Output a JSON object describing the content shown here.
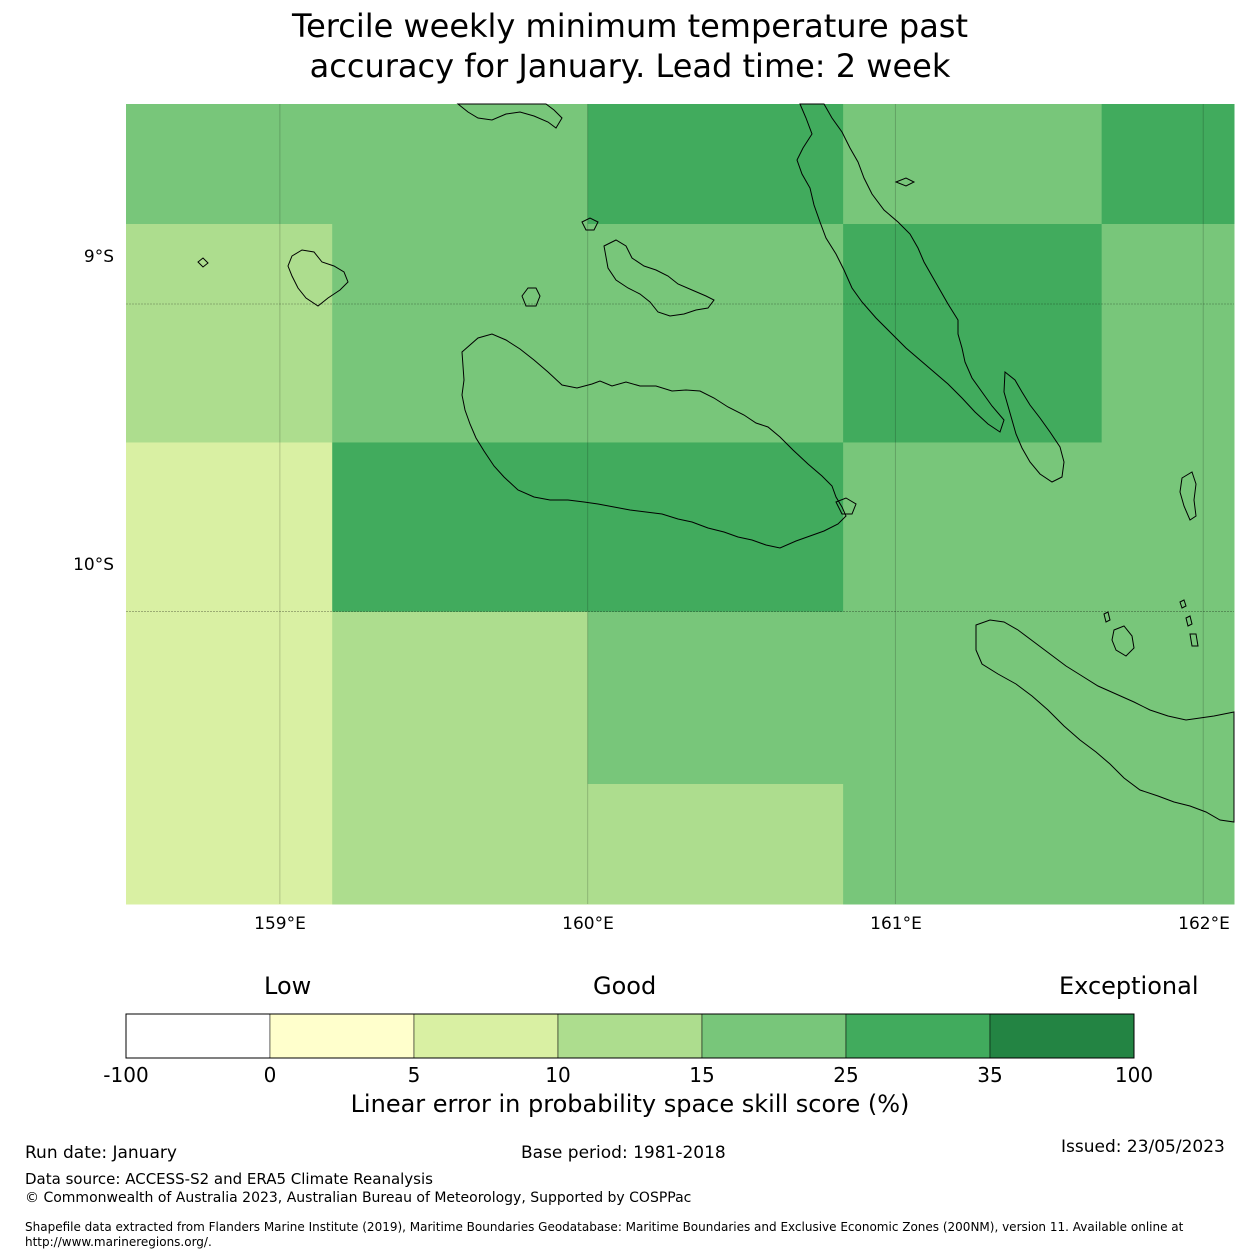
{
  "title_line1": "Tercile weekly minimum temperature past",
  "title_line2": "accuracy for January. Lead time: 2 week",
  "map": {
    "lon_range": [
      158.5,
      162.1
    ],
    "lat_range": [
      -8.35,
      -10.95
    ],
    "lat_labels": [
      "9°S",
      "10°S"
    ],
    "lon_labels": [
      "159°E",
      "160°E",
      "161°E",
      "162°E"
    ],
    "rows": [
      {
        "lat_top": -8.35,
        "lat_bottom": -8.74,
        "cells": [
          {
            "lon_w": 158.5,
            "lon_e": 160.0,
            "color": "#78c67a"
          },
          {
            "lon_w": 160.0,
            "lon_e": 160.83,
            "color": "#41ab5d"
          },
          {
            "lon_w": 160.83,
            "lon_e": 161.67,
            "color": "#78c67a"
          },
          {
            "lon_w": 161.67,
            "lon_e": 162.1,
            "color": "#41ab5d"
          }
        ]
      },
      {
        "lat_top": -8.74,
        "lat_bottom": -9.45,
        "cells": [
          {
            "lon_w": 158.5,
            "lon_e": 159.17,
            "color": "#addd8e"
          },
          {
            "lon_w": 159.17,
            "lon_e": 160.83,
            "color": "#78c67a"
          },
          {
            "lon_w": 160.83,
            "lon_e": 161.67,
            "color": "#41ab5d"
          },
          {
            "lon_w": 161.67,
            "lon_e": 162.1,
            "color": "#78c67a"
          }
        ]
      },
      {
        "lat_top": -9.45,
        "lat_bottom": -10.0,
        "cells": [
          {
            "lon_w": 158.5,
            "lon_e": 159.17,
            "color": "#d9f0a3"
          },
          {
            "lon_w": 159.17,
            "lon_e": 160.83,
            "color": "#41ab5d"
          },
          {
            "lon_w": 160.83,
            "lon_e": 162.1,
            "color": "#78c67a"
          }
        ]
      },
      {
        "lat_top": -10.0,
        "lat_bottom": -10.56,
        "cells": [
          {
            "lon_w": 158.5,
            "lon_e": 159.17,
            "color": "#d9f0a3"
          },
          {
            "lon_w": 159.17,
            "lon_e": 160.0,
            "color": "#addd8e"
          },
          {
            "lon_w": 160.0,
            "lon_e": 162.1,
            "color": "#78c67a"
          }
        ]
      },
      {
        "lat_top": -10.56,
        "lat_bottom": -10.95,
        "cells": [
          {
            "lon_w": 158.5,
            "lon_e": 159.17,
            "color": "#d9f0a3"
          },
          {
            "lon_w": 159.17,
            "lon_e": 160.83,
            "color": "#addd8e"
          },
          {
            "lon_w": 160.83,
            "lon_e": 162.1,
            "color": "#78c67a"
          }
        ]
      }
    ]
  },
  "colorbar": {
    "categories": [
      "Low",
      "Good",
      "Exceptional"
    ],
    "ticks": [
      "-100",
      "0",
      "5",
      "10",
      "15",
      "25",
      "35",
      "100"
    ],
    "colors": [
      "#ffffff",
      "#ffffcc",
      "#d9f0a3",
      "#addd8e",
      "#78c67a",
      "#41ab5d",
      "#238443"
    ],
    "label": "Linear error in probability space skill score (%)"
  },
  "footer": {
    "run_date": "Run date: January",
    "base_period": "Base period: 1981-2018",
    "issued": "Issued: 23/05/2023",
    "data_source": "Data source: ACCESS-S2 and ERA5 Climate Reanalysis",
    "copyright": "© Commonwealth of Australia 2023, Australian Bureau of Meteorology, Supported by COSPPac",
    "shapefile": "Shapefile data extracted from Flanders Marine Institute (2019), Maritime Boundaries Geodatabase: Maritime Boundaries and Exclusive Economic Zones (200NM), version 11. Available online at http://www.marineregions.org/."
  }
}
